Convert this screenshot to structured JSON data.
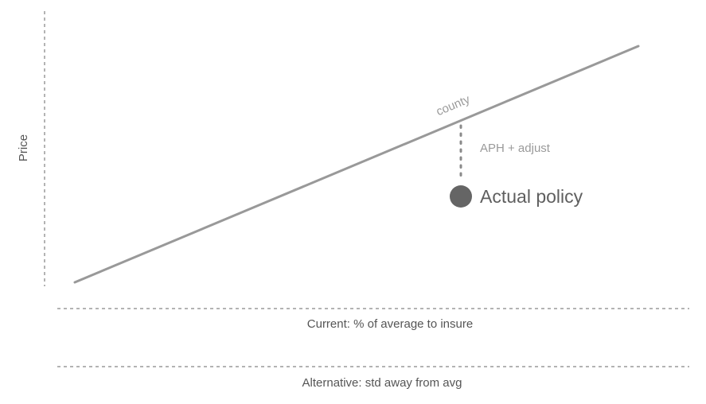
{
  "y_axis_label": "Price",
  "line_label": "county",
  "adjustment_label": "APH + adjust",
  "point_label": "Actual policy",
  "x_axis_current_label": "Current: % of average to insure",
  "x_axis_alternative_label": "Alternative: std away from avg",
  "colors": {
    "line": "#999999",
    "point": "#656565",
    "axis": "#9a9a9a"
  }
}
